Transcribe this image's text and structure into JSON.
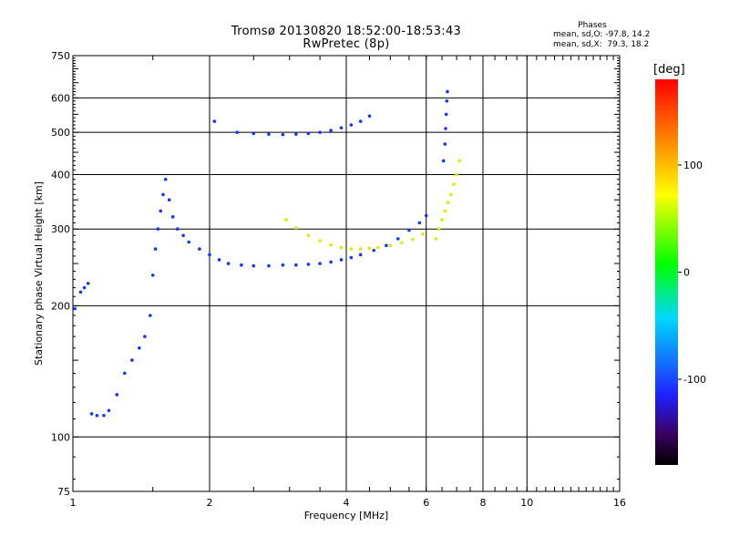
{
  "chart_data": {
    "type": "scatter",
    "title": "Tromsø 20130820 18:52:00-18:53:43",
    "subtitle": "RwPretec (8p)",
    "xlabel": "Frequency [MHz]",
    "ylabel": "Stationary phase Virtual Height [km]",
    "x_scale": "log",
    "y_scale": "log",
    "xlim": [
      1,
      16
    ],
    "ylim": [
      75,
      750
    ],
    "x_ticks": [
      1,
      2,
      4,
      6,
      8,
      10,
      16
    ],
    "y_ticks": [
      75,
      100,
      200,
      300,
      400,
      500,
      600,
      750
    ],
    "grid": true,
    "phases": {
      "heading": "Phases",
      "o_line": "mean, sd,O: -97.8, 14.2",
      "x_line": "mean, sd,X:  79.3, 18.2"
    },
    "colorbar": {
      "label": "[deg]",
      "ticks": [
        100,
        0,
        -100
      ],
      "range": [
        -180,
        180
      ],
      "colormap": "rainbow"
    },
    "series": [
      {
        "mode": "O",
        "phase_deg": -100,
        "x": [
          1.01,
          1.04,
          1.06,
          1.08,
          1.1,
          1.13,
          1.17,
          1.2,
          1.25,
          1.3,
          1.35,
          1.4,
          1.44,
          1.48,
          1.5,
          1.52,
          1.54,
          1.56,
          1.58,
          1.6,
          1.63,
          1.66,
          1.7,
          1.75,
          1.8,
          1.9,
          2.0,
          2.1,
          2.2,
          2.35,
          2.5,
          2.7,
          2.9,
          3.1,
          3.3,
          3.5,
          3.7,
          3.9,
          4.1,
          4.3,
          4.6,
          4.9,
          5.2,
          5.5,
          5.8,
          6.0
        ],
        "y": [
          197,
          215,
          220,
          225,
          113,
          112,
          112,
          115,
          125,
          140,
          150,
          160,
          170,
          190,
          235,
          270,
          300,
          330,
          360,
          390,
          350,
          320,
          300,
          290,
          280,
          270,
          262,
          255,
          250,
          248,
          247,
          247,
          248,
          248,
          249,
          250,
          252,
          255,
          258,
          262,
          268,
          275,
          285,
          298,
          310,
          322
        ]
      },
      {
        "mode": "O upper",
        "phase_deg": -100,
        "x": [
          2.05,
          2.3,
          2.5,
          2.7,
          2.9,
          3.1,
          3.3,
          3.5,
          3.7,
          3.9,
          4.1,
          4.3,
          4.5
        ],
        "y": [
          530,
          500,
          497,
          495,
          494,
          495,
          497,
          500,
          505,
          512,
          520,
          530,
          545
        ]
      },
      {
        "mode": "X",
        "phase_deg": 80,
        "x": [
          2.95,
          3.1,
          3.3,
          3.5,
          3.7,
          3.9,
          4.1,
          4.3,
          4.5,
          4.7,
          5.0,
          5.3,
          5.6,
          5.9
        ],
        "y": [
          315,
          302,
          290,
          282,
          276,
          272,
          270,
          270,
          271,
          272,
          275,
          279,
          284,
          292
        ]
      },
      {
        "mode": "X upper",
        "phase_deg": 80,
        "x": [
          6.3,
          6.4,
          6.5,
          6.6,
          6.7,
          6.8,
          6.9,
          7.0,
          7.1
        ],
        "y": [
          285,
          300,
          315,
          330,
          345,
          360,
          380,
          400,
          430
        ]
      },
      {
        "mode": "O high",
        "phase_deg": -100,
        "x": [
          6.55,
          6.6,
          6.62,
          6.64,
          6.66,
          6.68
        ],
        "y": [
          430,
          470,
          510,
          550,
          590,
          620
        ]
      }
    ]
  }
}
